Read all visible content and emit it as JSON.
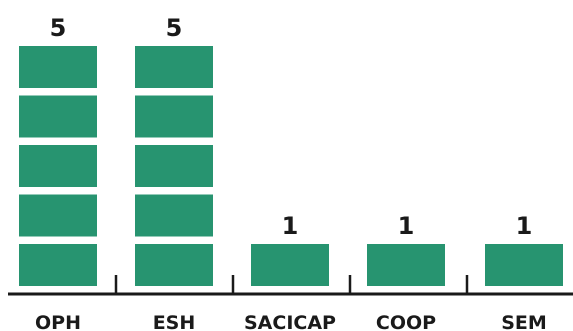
{
  "chart_data": {
    "type": "bar",
    "style": "stacked unit blocks (one block per unit)",
    "categories": [
      "OPH",
      "ESH",
      "SACICAP",
      "COOP",
      "SEM"
    ],
    "values": [
      5,
      5,
      1,
      1,
      1
    ],
    "title": "",
    "xlabel": "",
    "ylabel": "",
    "ylim": [
      0,
      5
    ],
    "grid": false,
    "legend": "none",
    "data_labels": true,
    "colors": {
      "bar": "#279470",
      "axis": "#1a1a1a",
      "text": "#1a1a1a"
    }
  }
}
